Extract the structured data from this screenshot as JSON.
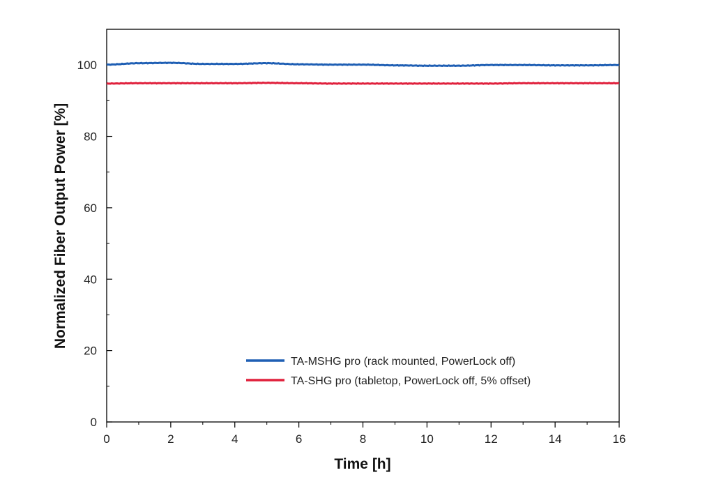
{
  "chart_data": {
    "type": "line",
    "xlabel": "Time [h]",
    "ylabel": "Normalized Fiber Output Power [%]",
    "xlim": [
      0,
      16
    ],
    "ylim": [
      0,
      110
    ],
    "xticks": [
      0,
      2,
      4,
      6,
      8,
      10,
      12,
      14,
      16
    ],
    "yticks": [
      0,
      20,
      40,
      60,
      80,
      100
    ],
    "grid": false,
    "legend_position": "bottom-right",
    "series": [
      {
        "name": "TA-MSHG pro (rack mounted, PowerLock off)",
        "color": "#1f5fb4",
        "x": [
          0,
          1,
          2,
          3,
          4,
          5,
          6,
          7,
          8,
          9,
          10,
          11,
          12,
          13,
          14,
          15,
          16
        ],
        "y": [
          100.1,
          100.5,
          100.6,
          100.3,
          100.3,
          100.5,
          100.2,
          100.1,
          100.1,
          99.9,
          99.8,
          99.8,
          100.0,
          100.0,
          99.9,
          99.9,
          100.0
        ]
      },
      {
        "name": "TA-SHG pro (tabletop, PowerLock off, 5% offset)",
        "color": "#e0203c",
        "x": [
          0,
          1,
          2,
          3,
          4,
          5,
          6,
          7,
          8,
          9,
          10,
          11,
          12,
          13,
          14,
          15,
          16
        ],
        "y": [
          94.8,
          94.9,
          94.9,
          94.9,
          94.9,
          95.0,
          94.9,
          94.8,
          94.8,
          94.8,
          94.8,
          94.8,
          94.8,
          94.9,
          94.9,
          94.9,
          94.9
        ]
      }
    ]
  }
}
